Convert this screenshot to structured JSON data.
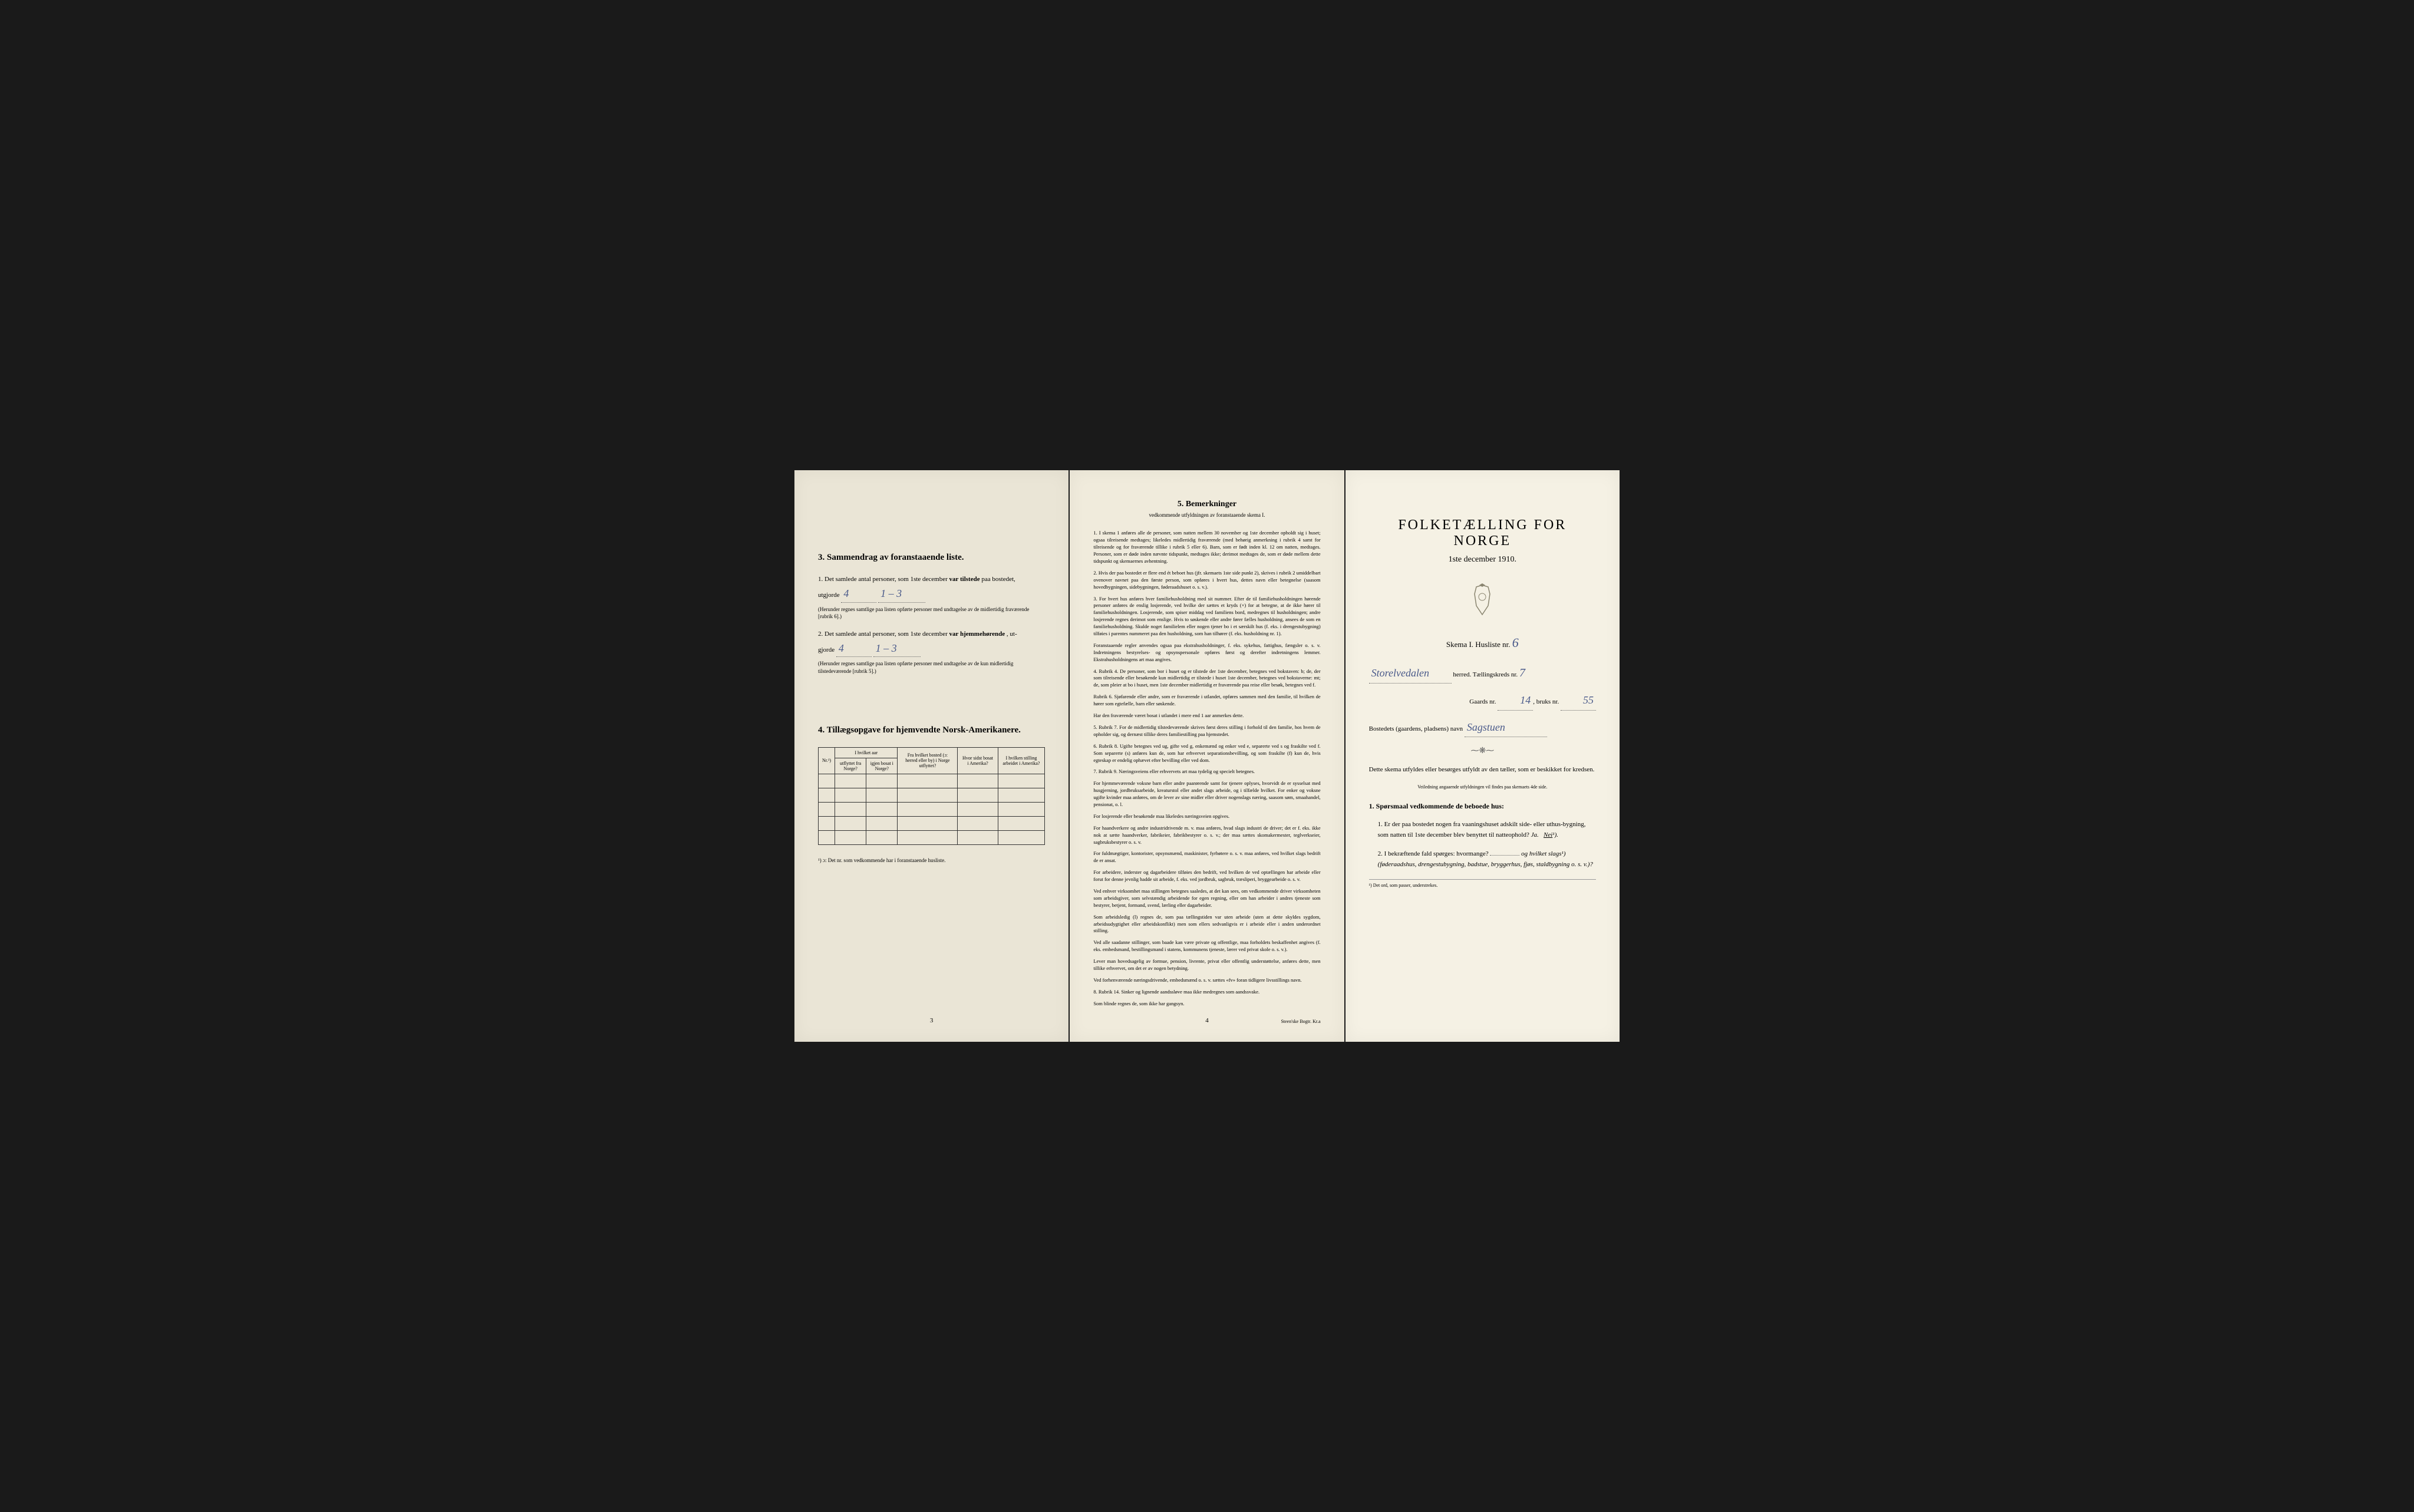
{
  "page1": {
    "section3": {
      "title": "3.   Sammendrag av foranstaaende liste.",
      "item1_prefix": "1. Det samlede antal personer, som 1ste december",
      "item1_bold": "var tilstede",
      "item1_suffix": "paa bostedet,",
      "item1_line2": "utgjorde",
      "item1_hand1": "4",
      "item1_hand2": "1 – 3",
      "item1_note": "(Herunder regnes samtlige paa listen opførte personer med undtagelse av de midlertidig fraværende [rubrik 6].)",
      "item2_prefix": "2. Det samlede antal personer, som 1ste december",
      "item2_bold": "var hjemmehørende",
      "item2_suffix": ", ut-",
      "item2_line2": "gjorde",
      "item2_hand1": "4",
      "item2_hand2": "1 – 3",
      "item2_note": "(Herunder regnes samtlige paa listen opførte personer med undtagelse av de kun midlertidig tilstedeværende [rubrik 5].)"
    },
    "section4": {
      "title": "4.   Tillægsopgave for hjemvendte Norsk-Amerikanere.",
      "table": {
        "headers": {
          "col1": "Nr.¹)",
          "col2_group": "I hvilket aar",
          "col2a": "utflyttet fra Norge?",
          "col2b": "igjen bosat i Norge?",
          "col3": "Fra hvilket bosted (ɔ: herred eller by) i Norge utflyttet?",
          "col4": "Hvor sidst bosat i Amerika?",
          "col5": "I hvilken stilling arbeidet i Amerika?"
        }
      },
      "footnote": "¹) ɔ: Det nr. som vedkommende har i foranstaaende husliste."
    },
    "page_num": "3"
  },
  "page2": {
    "section5": {
      "title": "5.   Bemerkninger",
      "subtitle": "vedkommende utfyldningen av foranstaaende skema I.",
      "items": [
        "1. I skema 1 anføres alle de personer, som natten mellem 30 november og 1ste december opholdt sig i huset; ogsaa tilreisende medtages; likeledes midlertidig fraværende (med behørig anmerkning i rubrik 4 samt for tilreisende og for fraværende tillike i rubrik 5 eller 6). Barn, som er født inden kl. 12 om natten, medtages. Personer, som er døde inden nævnte tidspunkt, medtages ikke; derimot medtages de, som er døde mellem dette tidspunkt og skemaernes avhentning.",
        "2. Hvis der paa bostedet er flere end ét beboet hus (jfr. skemaets 1ste side punkt 2), skrives i rubrik 2 umiddelbart ovenover navnet paa den første person, som opføres i hvert hus, dettes navn eller betegnelse (saasom hovedbygningen, sidebygningen, føderaadshuset o. s. v.).",
        "3. For hvert hus anføres hver familiehusholdning med sit nummer. Efter de til familiehusholdningen hørende personer anføres de enslig losjerende, ved hvilke der sættes et kryds (×) for at betegne, at de ikke hører til familiehusholdningen. Losjerende, som spiser middag ved familiens bord, medregnes til husholdningen; andre losjerende regnes derimot som enslige. Hvis to søskende eller andre fører fælles husholdning, ansees de som en familiehusholdning. Skulde noget familielem eller nogen tjener bo i et særskilt hus (f. eks. i drengestubygning) tilføies i parentes nummeret paa den husholdning, som han tilhører (f. eks. husholdning nr. 1).",
        "Foranstaaende regler anvendes ogsaa paa ekstrahusholdninger, f. eks. sykehus, fattighus, fængsler o. s. v. Indretningens bestyrelses- og opsynspersonale opføres først og derefter indretningens lemmer. Ekstrahusholdningens art maa angives.",
        "4. Rubrik 4. De personer, som bor i huset og er tilstede der 1ste december, betegnes ved bokstaven: b; de, der som tilreisende eller besøkende kun midlertidig er tilstede i huset 1ste december, betegnes ved bokstaverne: mt; de, som pleier at bo i huset, men 1ste december midlertidig er fraværende paa reise eller besøk, betegnes ved f.",
        "Rubrik 6. Sjøfarende eller andre, som er fraværende i utlandet, opføres sammen med den familie, til hvilken de hører som egtefælle, barn eller søskende.",
        "Har den fraværende været bosat i utlandet i mere end 1 aar anmerkes dette.",
        "5. Rubrik 7. For de midlertidig tilstedeværende skrives først deres stilling i forhold til den familie, hos hvem de opholder sig, og dernæst tillike deres familiestilling paa hjemstedet.",
        "6. Rubrik 8. Ugifte betegnes ved ug, gifte ved g, enkemænd og enker ved e, separerte ved s og fraskilte ved f. Som separerte (s) anføres kun de, som har erhvervet separationsbevilling, og som fraskilte (f) kun de, hvis egteskap er endelig ophævet efter bevilling eller ved dom.",
        "7. Rubrik 9. Næringsveiens eller erhvervets art maa tydelig og specielt betegnes.",
        "For hjemmeværende voksne barn eller andre paarørende samt for tjenere oplyses, hvorvidt de er sysselsat med husgjerning, jordbruksarbeide, kreaturstol eller andet slags arbeide, og i tilfælde hvilket. For enker og voksne ugifte kvinder maa anføres, om de lever av sine midler eller driver nogenslags næring, saasom søm, smaahandel, pensionat, o. l.",
        "For losjerende eller besøkende maa likeledes næringsveien opgives.",
        "For haandverkere og andre industridrivende m. v. maa anføres, hvad slags industri de driver; det er f. eks. ikke nok at sætte haandverker, fabrikeier, fabrikbestyrer o. s. v.; der maa sættes skomakermester, teglverkseier, sagbruksbestyrer o. s. v.",
        "For fuldmægtiger, kontorister, opsynsmænd, maskinister, fyrbøtere o. s. v. maa anføres, ved hvilket slags bedrift de er ansat.",
        "For arbeidere, inderster og dagarbeidere tilføies den bedrift, ved hvilken de ved optællingen har arbeide eller forut for denne jevnlig hadde sit arbeide, f. eks. ved jordbruk, sagbruk, træsliperi, bryggearbeide o. s. v.",
        "Ved enhver virksomhet maa stillingen betegnes saaledes, at det kan sees, om vedkommende driver virksomheten som arbeidsgiver, som selvstændig arbeidende for egen regning, eller om han arbeider i andres tjeneste som bestyrer, betjent, formand, svend, lærling eller dagarbeider.",
        "Som arbeidsledig (l) regnes de, som paa tællingstiden var uten arbeide (uten at dette skyldes sygdom, arbeidsudygtighet eller arbeidskonflikt) men som ellers sedvanligvis er i arbeide eller i anden underordnet stilling.",
        "Ved alle saadanne stillinger, som baade kan være private og offentlige, maa forholdets beskaffenhet angives (f. eks. embedsmand, bestillingsmand i statens, kommunens tjeneste, lærer ved privat skole o. s. v.).",
        "Lever man hovedsagelig av formue, pension, livrente, privat eller offentlig understøttelse, anføres dette, men tillike erhvervet, om det er av nogen betydning.",
        "Ved forhenværende næringsdrivende, embedsmænd o. s. v. sættes «fv» foran tidligere livsstillings navn.",
        "8. Rubrik 14. Sinker og lignende aandssløve maa ikke medregnes som aandssvake.",
        "Som blinde regnes de, som ikke har gangsyn."
      ]
    },
    "page_num": "4",
    "footer": "Steen'ske Bogtr. Kr.a"
  },
  "page3": {
    "main_title": "FOLKETÆLLING FOR NORGE",
    "date": "1ste december 1910.",
    "schema_label": "Skema I.   Husliste nr.",
    "schema_num": "6",
    "herred_hand": "Storelvedalen",
    "herred_label": "herred.   Tællingskreds nr.",
    "kreds_num": "7",
    "gaards_label": "Gaards nr.",
    "gaards_num": "14",
    "bruks_label": "bruks nr.",
    "bruks_num": "55",
    "bosted_label": "Bostedets (gaardens, pladsens) navn",
    "bosted_hand": "Sagstuen",
    "instruction1": "Dette skema utfyldes eller besørges utfyldt av den tæller, som er beskikket for kredsen.",
    "instruction2": "Veiledning angaaende utfyldningen vil findes paa skemaets 4de side.",
    "question_heading": "1. Spørsmaal vedkommende de beboede hus:",
    "q1": "1. Er der paa bostedet nogen fra vaaningshuset adskilt side- eller uthus-bygning, som natten til 1ste december blev benyttet til natteophold?",
    "q1_answers": "Ja.   Nei¹).",
    "q2": "2. I bekræftende fald spørges: hvormange?",
    "q2_suffix": "og hvilket slags¹) (føderaadshus, drengestubygning, badstue, bryggerhus, fjøs, staldbygning o. s. v.)?",
    "footnote": "¹) Det ord, som passer, understrekes."
  }
}
